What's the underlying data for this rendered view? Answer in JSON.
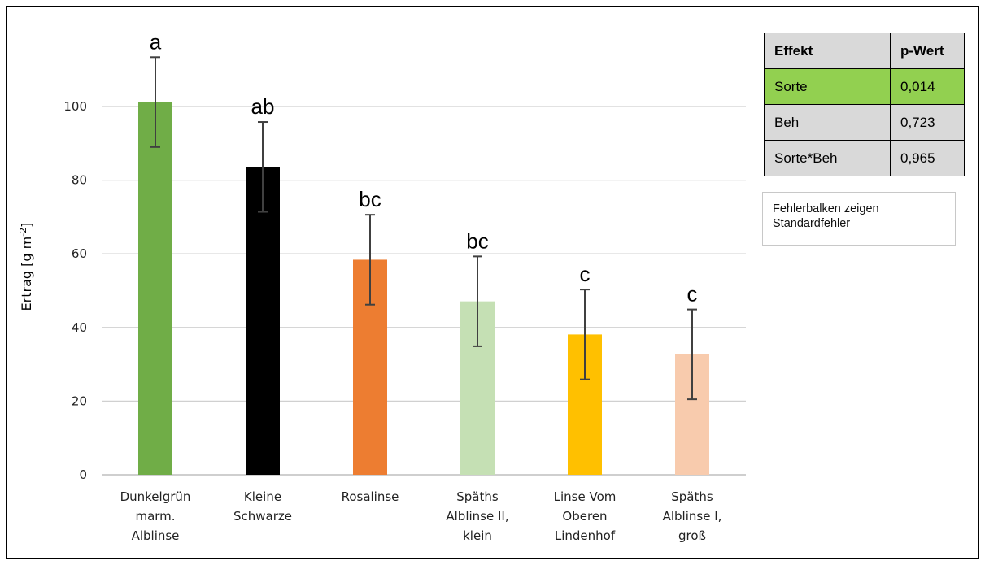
{
  "chart_data": {
    "type": "bar",
    "categories": [
      [
        "Dunkelgrün",
        "marm.",
        "Alblinse"
      ],
      [
        "Kleine",
        "Schwarze"
      ],
      [
        "Rosalinse"
      ],
      [
        "Späths",
        "Alblinse II,",
        "klein"
      ],
      [
        "Linse Vom",
        "Oberen",
        "Lindenhof"
      ],
      [
        "Späths",
        "Alblinse I,",
        "groß"
      ]
    ],
    "values": [
      101.2,
      83.6,
      58.4,
      47.1,
      38.1,
      32.7
    ],
    "errors": [
      12.2,
      12.2,
      12.2,
      12.2,
      12.2,
      12.2
    ],
    "significance_letters": [
      "a",
      "ab",
      "bc",
      "bc",
      "c",
      "c"
    ],
    "colors": [
      "#70ad47",
      "#000000",
      "#ed7d31",
      "#c5e0b4",
      "#ffc000",
      "#f8cbad"
    ],
    "ylabel": "Ertrag [g m",
    "ylabel_sup": "-2",
    "ylabel_end": "]",
    "ylim": [
      0,
      100
    ],
    "yticks": [
      0,
      20,
      40,
      60,
      80,
      100
    ],
    "grid": true
  },
  "effects_table": {
    "headers": [
      "Effekt",
      "p-Wert"
    ],
    "rows": [
      {
        "effect": "Sorte",
        "p": "0,014",
        "highlight": "#92d050"
      },
      {
        "effect": "Beh",
        "p": "0,723"
      },
      {
        "effect": "Sorte*Beh",
        "p": "0,965"
      }
    ]
  },
  "note": {
    "line1": "Fehlerbalken  zeigen",
    "line2": "Standardfehler"
  }
}
